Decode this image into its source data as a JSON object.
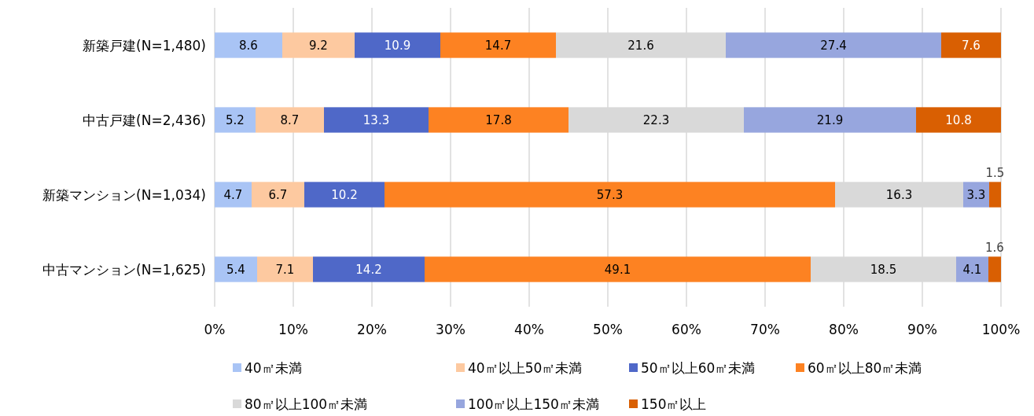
{
  "chart_data": {
    "type": "bar",
    "orientation": "horizontal",
    "stacked": true,
    "data_labels": true,
    "grid": "x",
    "legend": "bottom",
    "categories": [
      "新築戸建(N=1,480)",
      "中古戸建(N=2,436)",
      "新築マンション(N=1,034)",
      "中古マンション(N=1,625)"
    ],
    "xlim": [
      0,
      100
    ],
    "xticks": [
      {
        "value": 0,
        "label": "0%"
      },
      {
        "value": 10,
        "label": "10%"
      },
      {
        "value": 20,
        "label": "20%"
      },
      {
        "value": 30,
        "label": "30%"
      },
      {
        "value": 40,
        "label": "40%"
      },
      {
        "value": 50,
        "label": "50%"
      },
      {
        "value": 60,
        "label": "60%"
      },
      {
        "value": 70,
        "label": "70%"
      },
      {
        "value": 80,
        "label": "80%"
      },
      {
        "value": 90,
        "label": "90%"
      },
      {
        "value": 100,
        "label": "100%"
      }
    ],
    "series": [
      {
        "name": "40㎡未満",
        "color": "#a9c4f5",
        "values": [
          8.6,
          5.2,
          4.7,
          5.4
        ]
      },
      {
        "name": "40㎡以上50㎡未満",
        "color": "#fdc9a0",
        "values": [
          9.2,
          8.7,
          6.7,
          7.1
        ]
      },
      {
        "name": "50㎡以上60㎡未満",
        "color": "#4f68c8",
        "values": [
          10.9,
          13.3,
          10.2,
          14.2
        ]
      },
      {
        "name": "60㎡以上80㎡未満",
        "color": "#fd8222",
        "values": [
          14.7,
          17.8,
          57.3,
          49.1
        ]
      },
      {
        "name": "80㎡以上100㎡未満",
        "color": "#d9d9d9",
        "values": [
          21.6,
          22.3,
          16.3,
          18.5
        ]
      },
      {
        "name": "100㎡以上150㎡未満",
        "color": "#97a6de",
        "values": [
          27.4,
          21.9,
          3.3,
          4.1
        ]
      },
      {
        "name": "150㎡以上",
        "color": "#d95f02",
        "values": [
          7.6,
          10.8,
          1.5,
          1.6
        ]
      }
    ]
  }
}
